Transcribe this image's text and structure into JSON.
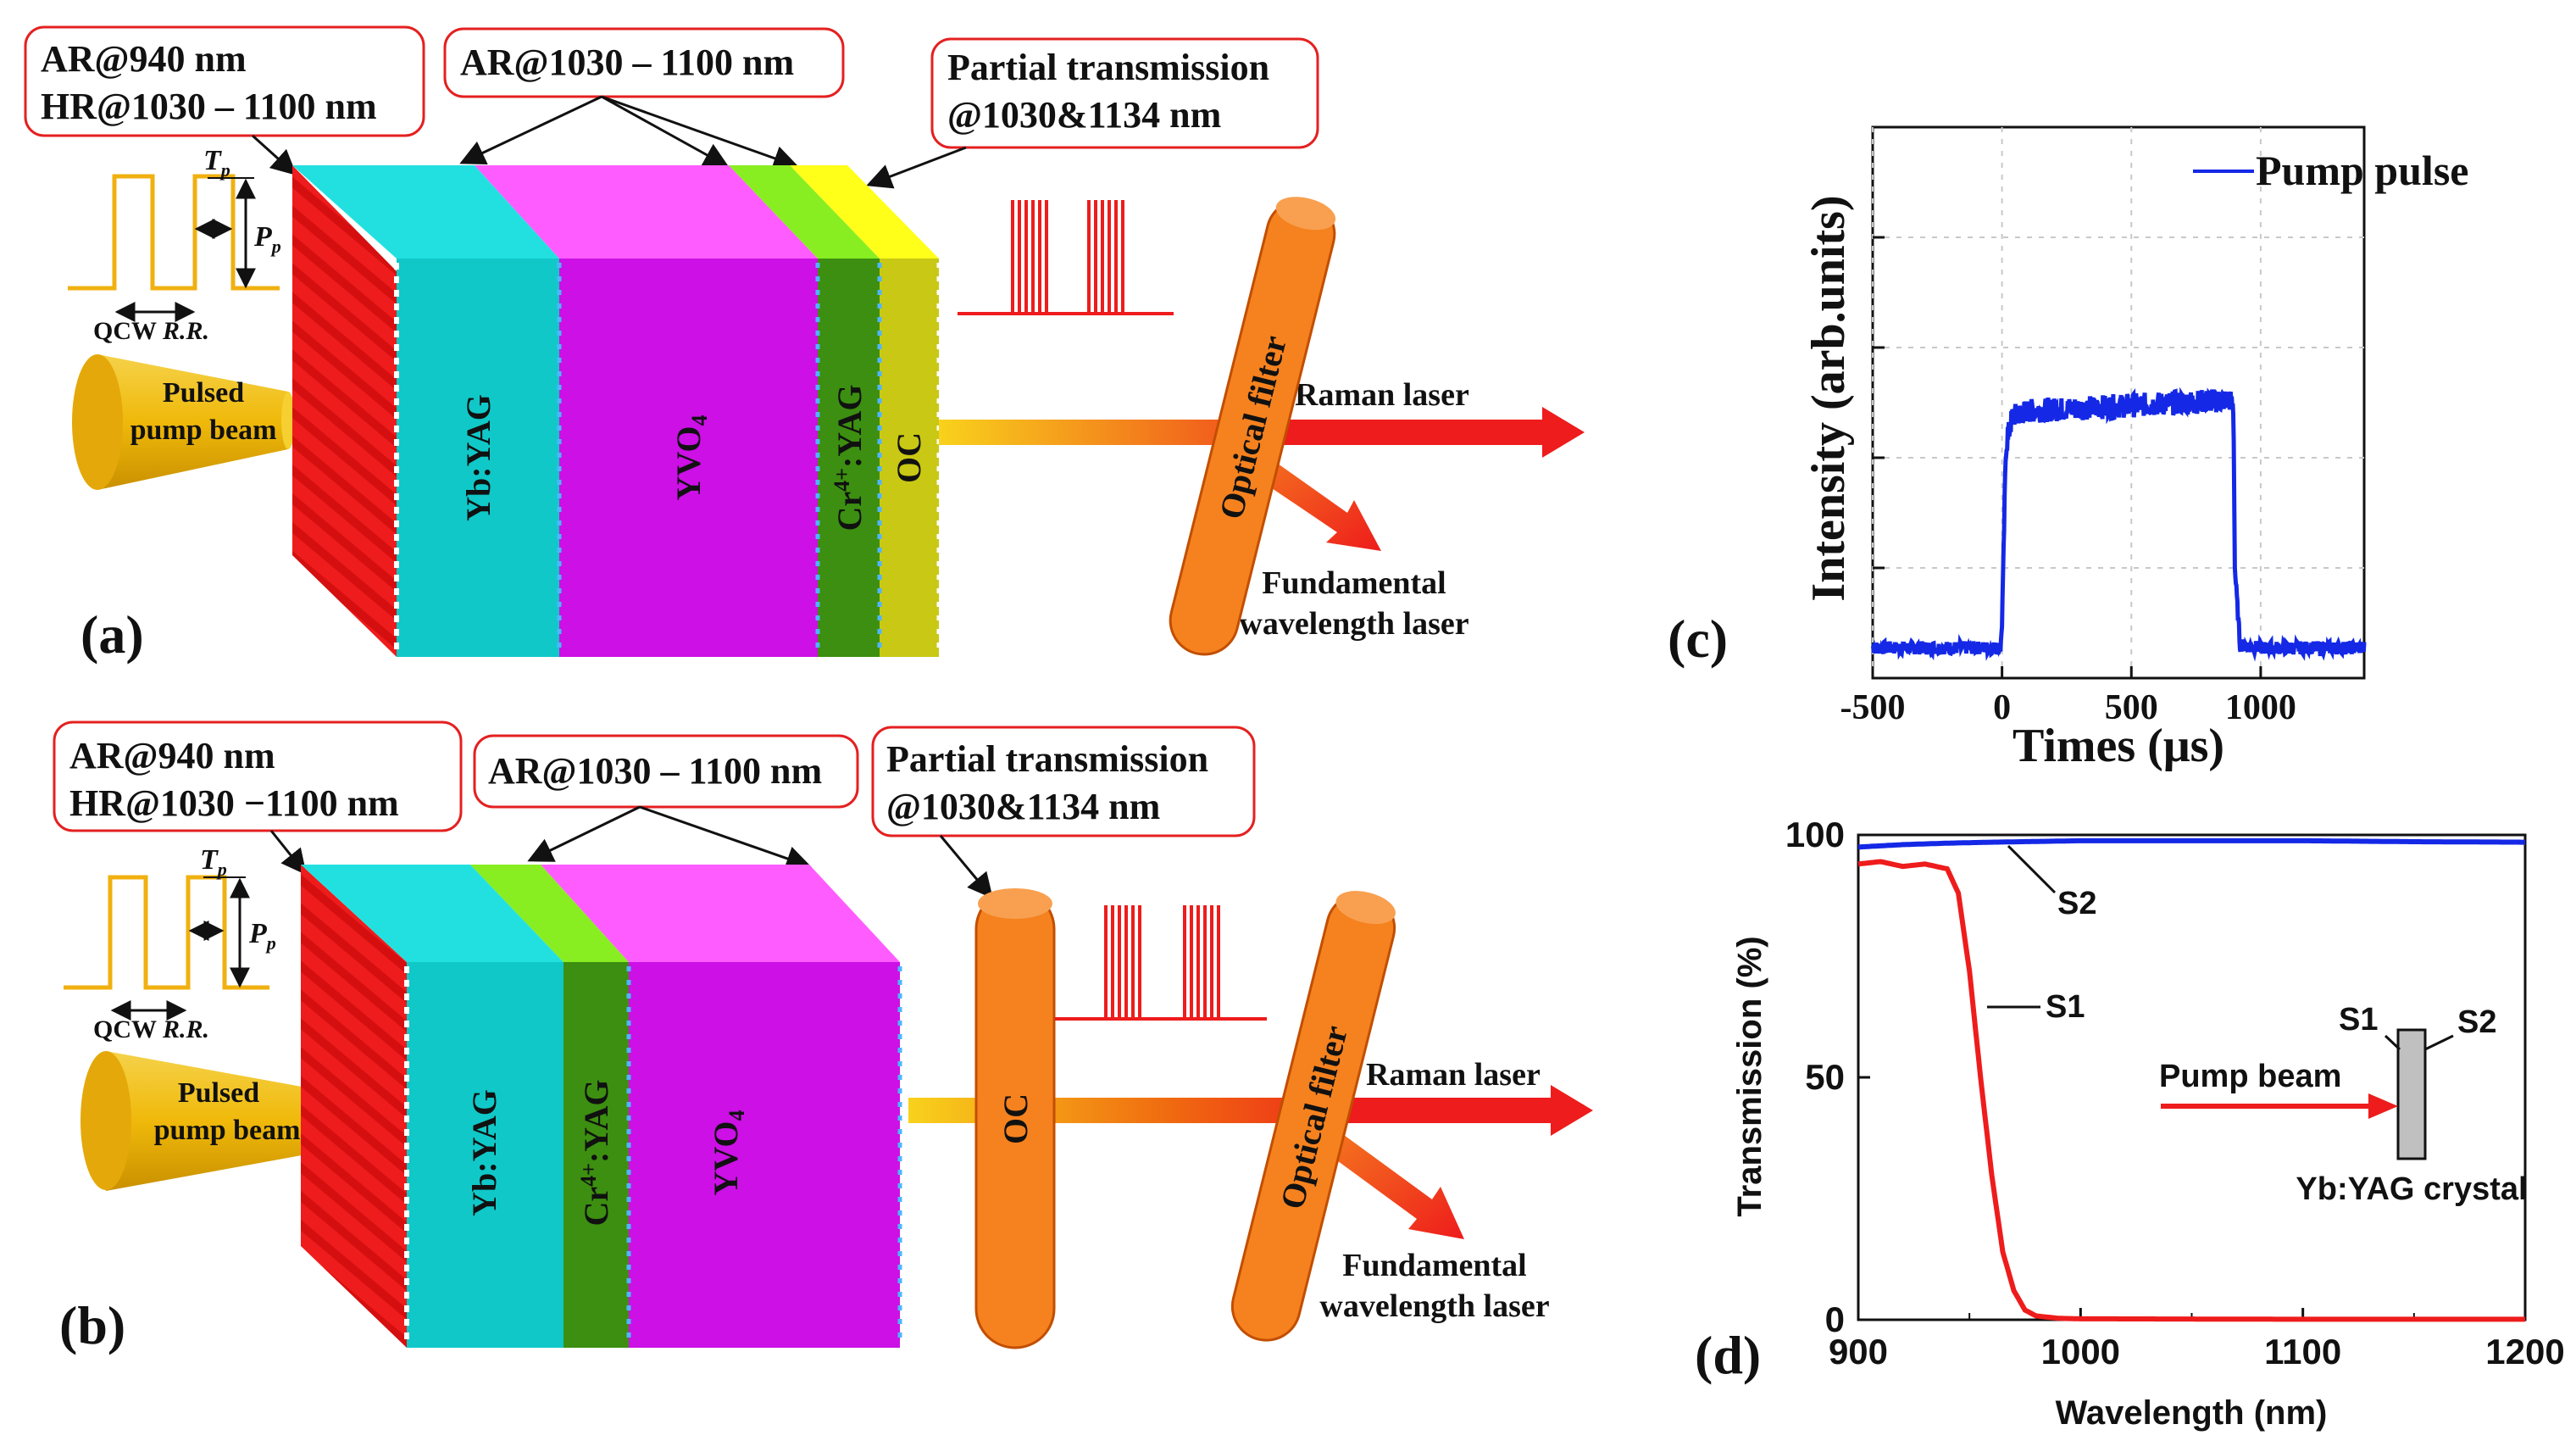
{
  "colors": {
    "red": "#ee1c1c",
    "yag": "#10c8c8",
    "yagTop": "#23e0e0",
    "yvo": "#cc10e6",
    "yvoTop": "#ff5cff",
    "cr": "#3c8f10",
    "crTop": "#88ee22",
    "oc": "#c9c814",
    "ocTop": "#ffff19",
    "filter": "#f5821f",
    "cone": "#f0b90a",
    "pulse": "#f0b010",
    "blue": "#1428e6",
    "arrow": "#e81010"
  },
  "panel_a": {
    "label": "(a)",
    "callout1": {
      "line1": "AR@940 nm",
      "line2": "HR@1030 – 1100 nm"
    },
    "callout2": {
      "line1": "AR@1030 – 1100 nm"
    },
    "callout3": {
      "line1": "Partial transmission",
      "line2": "@1030&1134 nm"
    },
    "tp_label": "T",
    "tp_sub": "p",
    "pp_label": "P",
    "pp_sub": "p",
    "qcw_label": "QCW ",
    "rr_label": "R.R.",
    "pump_line1": "Pulsed",
    "pump_line2": "pump beam",
    "crystal_yag": "Yb:YAG",
    "crystal_yvo": "YVO",
    "crystal_yvo_sub": "4",
    "crystal_cr": "Cr",
    "crystal_cr_sup": "4+",
    "crystal_cr_rest": ":YAG",
    "crystal_oc": "OC",
    "filter_label": "Optical filter",
    "raman": "Raman laser",
    "fund_line1": "Fundamental",
    "fund_line2": "wavelength laser"
  },
  "panel_b": {
    "label": "(b)",
    "callout1": {
      "line1": "AR@940 nm",
      "line2": "HR@1030  −1100 nm"
    },
    "callout2": {
      "line1": "AR@1030 – 1100 nm"
    },
    "callout3": {
      "line1": "Partial transmission",
      "line2": "@1030&1134 nm"
    },
    "tp_label": "T",
    "tp_sub": "p",
    "pp_label": "P",
    "pp_sub": "p",
    "qcw_label": "QCW ",
    "rr_label": "R.R.",
    "pump_line1": "Pulsed",
    "pump_line2": "pump beam",
    "crystal_yag": "Yb:YAG",
    "crystal_cr": "Cr",
    "crystal_cr_sup": "4+",
    "crystal_cr_rest": ":YAG",
    "crystal_yvo": "YVO",
    "crystal_yvo_sub": "4",
    "oc_label": "OC",
    "filter_label": "Optical filter",
    "raman": "Raman laser",
    "fund_line1": "Fundamental",
    "fund_line2": "wavelength laser"
  },
  "chart_data": [
    {
      "type": "line",
      "panel": "(c)",
      "title": "",
      "xlabel": "Times (μs)",
      "ylabel": "Intensity (arb.units)",
      "xlim": [
        -500,
        1400
      ],
      "ylim": [
        0,
        1
      ],
      "xticks": [
        -500,
        0,
        500,
        1000
      ],
      "xtick_labels": [
        "-500",
        "0",
        "500",
        "1000"
      ],
      "grid": true,
      "legend": "top-right",
      "series": [
        {
          "name": "Pump pulse",
          "color": "#1428e6",
          "x": [
            -500,
            -5,
            0,
            15,
            40,
            100,
            300,
            500,
            700,
            880,
            895,
            900,
            920,
            1000,
            1400
          ],
          "y": [
            0.055,
            0.055,
            0.1,
            0.42,
            0.475,
            0.485,
            0.49,
            0.495,
            0.5,
            0.505,
            0.49,
            0.2,
            0.06,
            0.055,
            0.055
          ]
        }
      ]
    },
    {
      "type": "line",
      "panel": "(d)",
      "title": "",
      "xlabel": "Wavelength (nm)",
      "ylabel": "Transmission (%)",
      "xlim": [
        900,
        1200
      ],
      "ylim": [
        0,
        100
      ],
      "xticks": [
        900,
        1000,
        1100,
        1200
      ],
      "xtick_labels": [
        "900",
        "1000",
        "1100",
        "1200"
      ],
      "yticks": [
        0,
        50,
        100
      ],
      "ytick_labels": [
        "0",
        "50",
        "100"
      ],
      "grid": false,
      "annotations": [
        "S1",
        "S2",
        "S1",
        "S2",
        "Pump beam",
        "Yb:YAG crystal"
      ],
      "series": [
        {
          "name": "S1",
          "color": "#ee1c1c",
          "x": [
            900,
            910,
            920,
            930,
            940,
            945,
            950,
            955,
            960,
            965,
            970,
            975,
            980,
            990,
            1000,
            1100,
            1200
          ],
          "y": [
            94,
            94.5,
            93.5,
            94,
            93,
            88,
            72,
            50,
            30,
            14,
            6,
            2,
            0.8,
            0.3,
            0.2,
            0.1,
            0.1
          ]
        },
        {
          "name": "S2",
          "color": "#1428e6",
          "x": [
            900,
            920,
            940,
            960,
            1000,
            1050,
            1100,
            1150,
            1200
          ],
          "y": [
            97.5,
            98,
            98.3,
            98.5,
            98.8,
            98.8,
            98.8,
            98.6,
            98.5
          ]
        }
      ]
    }
  ]
}
